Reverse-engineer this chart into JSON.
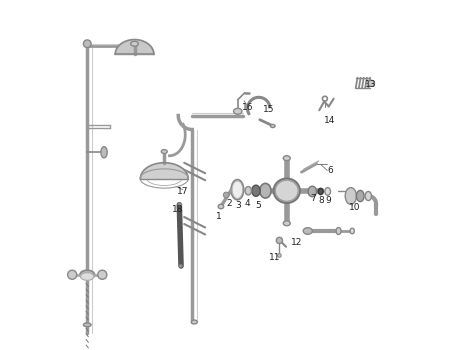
{
  "title": "",
  "bg_color": "#ffffff",
  "fig_width": 4.65,
  "fig_height": 3.5,
  "dpi": 100,
  "line_color": "#888888",
  "part_color": "#aaaaaa",
  "dark_color": "#444444",
  "light_color": "#cccccc"
}
